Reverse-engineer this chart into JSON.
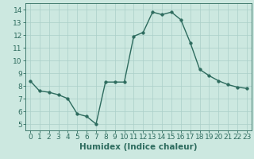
{
  "x": [
    0,
    1,
    2,
    3,
    4,
    5,
    6,
    7,
    8,
    9,
    10,
    11,
    12,
    13,
    14,
    15,
    16,
    17,
    18,
    19,
    20,
    21,
    22,
    23
  ],
  "y": [
    8.4,
    7.6,
    7.5,
    7.3,
    7.0,
    5.8,
    5.6,
    5.0,
    8.3,
    8.3,
    8.3,
    11.9,
    12.2,
    13.8,
    13.6,
    13.8,
    13.2,
    11.4,
    9.3,
    8.8,
    8.4,
    8.1,
    7.9,
    7.8
  ],
  "xlim": [
    -0.5,
    23.5
  ],
  "ylim": [
    4.5,
    14.5
  ],
  "yticks": [
    5,
    6,
    7,
    8,
    9,
    10,
    11,
    12,
    13,
    14
  ],
  "xticks": [
    0,
    1,
    2,
    3,
    4,
    5,
    6,
    7,
    8,
    9,
    10,
    11,
    12,
    13,
    14,
    15,
    16,
    17,
    18,
    19,
    20,
    21,
    22,
    23
  ],
  "xlabel": "Humidex (Indice chaleur)",
  "line_color": "#2d6b5e",
  "marker": "o",
  "marker_size": 2.5,
  "bg_color": "#cce8e0",
  "grid_color": "#aacfc8",
  "tick_fontsize": 6.5,
  "xlabel_fontsize": 7.5
}
